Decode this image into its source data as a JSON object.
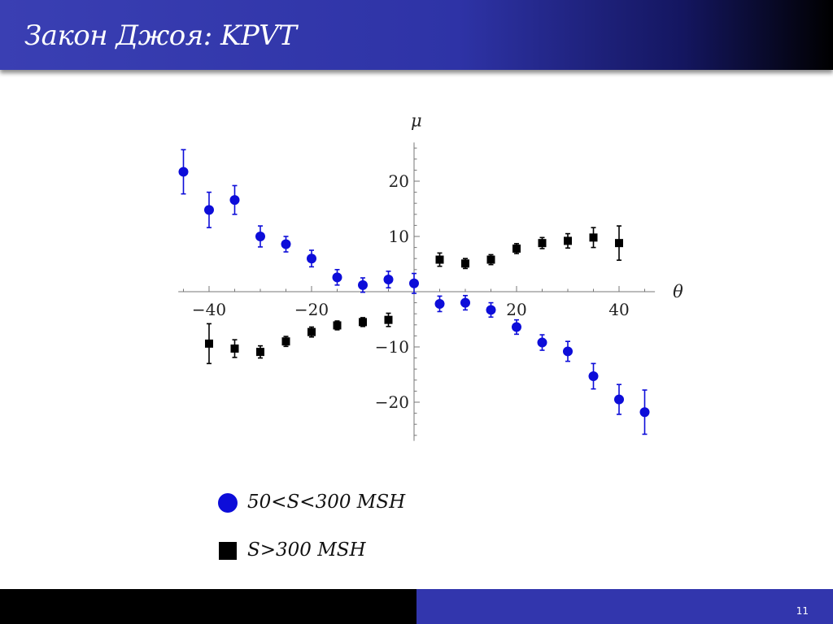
{
  "header": {
    "title": "Закон Джоя: KPVT"
  },
  "footer": {
    "page_number": "11"
  },
  "colors": {
    "series_1": "#0d0dd9",
    "series_2": "#000000",
    "header": "#3236ad"
  },
  "chart_data": {
    "type": "scatter",
    "xlabel": "θ",
    "ylabel": "μ",
    "xlim": [
      -46,
      47
    ],
    "ylim": [
      -27,
      27
    ],
    "x_ticks": [
      -40,
      -20,
      20,
      40
    ],
    "y_ticks": [
      -20,
      -10,
      10,
      20
    ],
    "x_tick_labels": [
      "−40",
      "−20",
      "20",
      "40"
    ],
    "y_tick_labels": [
      "−20",
      "−10",
      "10",
      "20"
    ],
    "error_bars": true,
    "grid": false,
    "legend_position": "below",
    "series": [
      {
        "name": "50<S<300 MSH",
        "marker": "circle",
        "color": "#0d0dd9",
        "points": [
          {
            "x": -45,
            "y": 21.7,
            "err": 4.0
          },
          {
            "x": -40,
            "y": 14.8,
            "err": 3.2
          },
          {
            "x": -35,
            "y": 16.6,
            "err": 2.6
          },
          {
            "x": -30,
            "y": 10.0,
            "err": 1.9
          },
          {
            "x": -25,
            "y": 8.6,
            "err": 1.4
          },
          {
            "x": -20,
            "y": 6.0,
            "err": 1.5
          },
          {
            "x": -15,
            "y": 2.6,
            "err": 1.4
          },
          {
            "x": -10,
            "y": 1.2,
            "err": 1.3
          },
          {
            "x": -5,
            "y": 2.2,
            "err": 1.5
          },
          {
            "x": 0,
            "y": 1.5,
            "err": 1.8
          },
          {
            "x": 5,
            "y": -2.2,
            "err": 1.4
          },
          {
            "x": 10,
            "y": -2.0,
            "err": 1.3
          },
          {
            "x": 15,
            "y": -3.3,
            "err": 1.3
          },
          {
            "x": 20,
            "y": -6.4,
            "err": 1.3
          },
          {
            "x": 25,
            "y": -9.2,
            "err": 1.4
          },
          {
            "x": 30,
            "y": -10.8,
            "err": 1.8
          },
          {
            "x": 35,
            "y": -15.3,
            "err": 2.3
          },
          {
            "x": 40,
            "y": -19.5,
            "err": 2.7
          },
          {
            "x": 45,
            "y": -21.8,
            "err": 4.0
          }
        ]
      },
      {
        "name": "S>300 MSH",
        "marker": "square",
        "color": "#000000",
        "points": [
          {
            "x": -40,
            "y": -9.4,
            "err": 3.6
          },
          {
            "x": -35,
            "y": -10.3,
            "err": 1.6
          },
          {
            "x": -30,
            "y": -10.9,
            "err": 1.1
          },
          {
            "x": -25,
            "y": -9.0,
            "err": 0.9
          },
          {
            "x": -20,
            "y": -7.3,
            "err": 0.9
          },
          {
            "x": -15,
            "y": -6.1,
            "err": 0.8
          },
          {
            "x": -10,
            "y": -5.5,
            "err": 0.8
          },
          {
            "x": -5,
            "y": -5.1,
            "err": 1.2
          },
          {
            "x": 5,
            "y": 5.8,
            "err": 1.2
          },
          {
            "x": 10,
            "y": 5.1,
            "err": 0.9
          },
          {
            "x": 15,
            "y": 5.8,
            "err": 0.9
          },
          {
            "x": 20,
            "y": 7.8,
            "err": 0.9
          },
          {
            "x": 25,
            "y": 8.8,
            "err": 1.0
          },
          {
            "x": 30,
            "y": 9.2,
            "err": 1.3
          },
          {
            "x": 35,
            "y": 9.8,
            "err": 1.8
          },
          {
            "x": 40,
            "y": 8.8,
            "err": 3.1
          }
        ]
      }
    ]
  }
}
